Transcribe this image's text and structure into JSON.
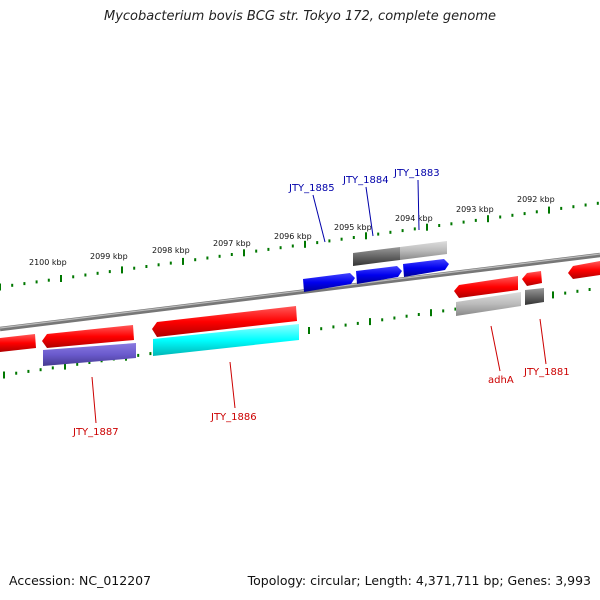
{
  "title": "Mycobacterium bovis BCG str. Tokyo 172, complete genome",
  "footer": {
    "accession": "Accession: NC_012207",
    "summary": "Topology: circular; Length: 4,371,711 bp; Genes: 3,993"
  },
  "colors": {
    "backbone": "#888888",
    "tick": "#007700",
    "forward_label": "#0000aa",
    "reverse_label": "#cc0000",
    "cds_blue": "#0000ee",
    "cds_red": "#ff0000",
    "gene_gray_light": "#bbbbbb",
    "gene_gray_dark": "#666666",
    "gene_purple": "#6a5acd",
    "gene_cyan": "#00ffff"
  },
  "kbp_labels": [
    "2100 kbp",
    "2099 kbp",
    "2098 kbp",
    "2097 kbp",
    "2096 kbp",
    "2095 kbp",
    "2094 kbp",
    "2093 kbp",
    "2092 kbp"
  ],
  "gene_labels": {
    "forward": [
      "JTY_1885",
      "JTY_1884",
      "JTY_1883"
    ],
    "reverse": [
      "JTY_1887",
      "JTY_1886",
      "adhA",
      "JTY_1881"
    ]
  }
}
